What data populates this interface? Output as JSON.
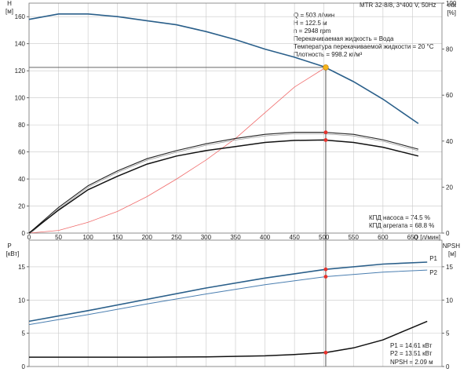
{
  "colors": {
    "blue": "#2a5f8a",
    "blue_light": "#4a7eb0",
    "red": "#e8322c",
    "red_line": "#f06b6b",
    "orange": "#f5b41a",
    "grid": "#c8c8c8"
  },
  "header": {
    "title": "MTR 32-8/8, 3*400 V, 50Hz"
  },
  "info": {
    "lines": [
      "Q = 503 л/мин",
      "H = 122.5 м",
      "n = 2948 rpm",
      "Перекачиваемая жидкость = Вода",
      "Температура перекачиваемой жидкости = 20 °C",
      "Плотность = 998.2 кг/м³"
    ]
  },
  "eff_info": {
    "lines": [
      "КПД насоса = 74.5 %",
      "КПД агрегата = 68.8 %"
    ]
  },
  "power_info": {
    "lines": [
      "P1 = 14.61 кВт",
      "P2 = 13.51 кВт",
      "NPSH = 2.09 м"
    ]
  },
  "chart_data": [
    {
      "type": "line",
      "title": "",
      "y_left_label": [
        "H",
        "[м]"
      ],
      "y_right_label": [
        "eta",
        "[%]"
      ],
      "xlabel": "Q [л/мин]",
      "xlim": [
        0,
        700
      ],
      "ylim_left": [
        0,
        170
      ],
      "ylim_right": [
        0,
        100
      ],
      "x_ticks": [
        0,
        50,
        100,
        150,
        200,
        250,
        300,
        350,
        400,
        450,
        500,
        550,
        600,
        650
      ],
      "y_left_ticks": [
        0,
        20,
        40,
        60,
        80,
        100,
        120,
        140,
        160
      ],
      "y_right_ticks": [
        0,
        20,
        40,
        60,
        80,
        100
      ],
      "grid": true,
      "duty_point": {
        "x": 503,
        "y": 122.5
      },
      "series": [
        {
          "name": "",
          "axis": "left",
          "role": "head",
          "x": [
            0,
            50,
            100,
            150,
            200,
            250,
            300,
            350,
            400,
            450,
            500,
            550,
            600,
            660
          ],
          "y": [
            158,
            162,
            162,
            160,
            157,
            154,
            149,
            143,
            136,
            130,
            123,
            112,
            99,
            81
          ]
        },
        {
          "name": "",
          "axis": "left",
          "role": "system",
          "x": [
            0,
            50,
            100,
            150,
            200,
            250,
            300,
            350,
            400,
            450,
            503
          ],
          "y": [
            0,
            2,
            8,
            16,
            27,
            40,
            54,
            70,
            89,
            108,
            122.5
          ]
        },
        {
          "name": "",
          "axis": "left",
          "role": "pump-eff",
          "x": [
            0,
            50,
            100,
            150,
            200,
            250,
            300,
            350,
            400,
            450,
            500,
            550,
            600,
            660
          ],
          "y": [
            0,
            19,
            35,
            46,
            55,
            61,
            66,
            70,
            73,
            74.5,
            74.5,
            73,
            69,
            62
          ]
        },
        {
          "name": "",
          "axis": "left",
          "role": "unit-eff",
          "x": [
            0,
            50,
            100,
            150,
            200,
            250,
            300,
            350,
            400,
            450,
            500,
            550,
            600,
            660
          ],
          "y": [
            0,
            17,
            32,
            42,
            51,
            57,
            61,
            64,
            67,
            68.5,
            68.8,
            67,
            63.5,
            57
          ]
        }
      ],
      "markers": [
        {
          "x": 503,
          "y": 74.5
        },
        {
          "x": 503,
          "y": 68.8
        }
      ]
    },
    {
      "type": "line",
      "title": "",
      "y_left_label": [
        "P",
        "[кВт]"
      ],
      "y_right_label": [
        "NPSH",
        "[м]"
      ],
      "xlim": [
        0,
        700
      ],
      "ylim_left": [
        0,
        19
      ],
      "ylim_right": [
        0,
        19
      ],
      "x_ticks": [
        0,
        50,
        100,
        150,
        200,
        250,
        300,
        350,
        400,
        450,
        500,
        550,
        600,
        650
      ],
      "y_left_ticks": [
        0,
        5,
        10,
        15
      ],
      "y_right_ticks": [
        0,
        5,
        10,
        15
      ],
      "grid": true,
      "series": [
        {
          "name": "P1",
          "axis": "left",
          "x": [
            0,
            100,
            200,
            300,
            400,
            503,
            600,
            675
          ],
          "y": [
            6.8,
            8.4,
            10.1,
            11.8,
            13.3,
            14.61,
            15.4,
            15.7
          ]
        },
        {
          "name": "P2",
          "axis": "left",
          "x": [
            0,
            100,
            200,
            300,
            400,
            503,
            600,
            675
          ],
          "y": [
            6.3,
            7.8,
            9.4,
            10.9,
            12.3,
            13.51,
            14.2,
            14.5
          ]
        },
        {
          "name": "",
          "axis": "right",
          "role": "npsh",
          "x": [
            0,
            100,
            200,
            300,
            400,
            450,
            503,
            550,
            600,
            640,
            675
          ],
          "y": [
            1.4,
            1.4,
            1.4,
            1.45,
            1.6,
            1.8,
            2.09,
            2.8,
            4.0,
            5.5,
            6.8
          ]
        }
      ],
      "markers": [
        {
          "x": 503,
          "y": 14.61
        },
        {
          "x": 503,
          "y": 13.51
        },
        {
          "x": 503,
          "y": 2.09
        }
      ]
    }
  ]
}
